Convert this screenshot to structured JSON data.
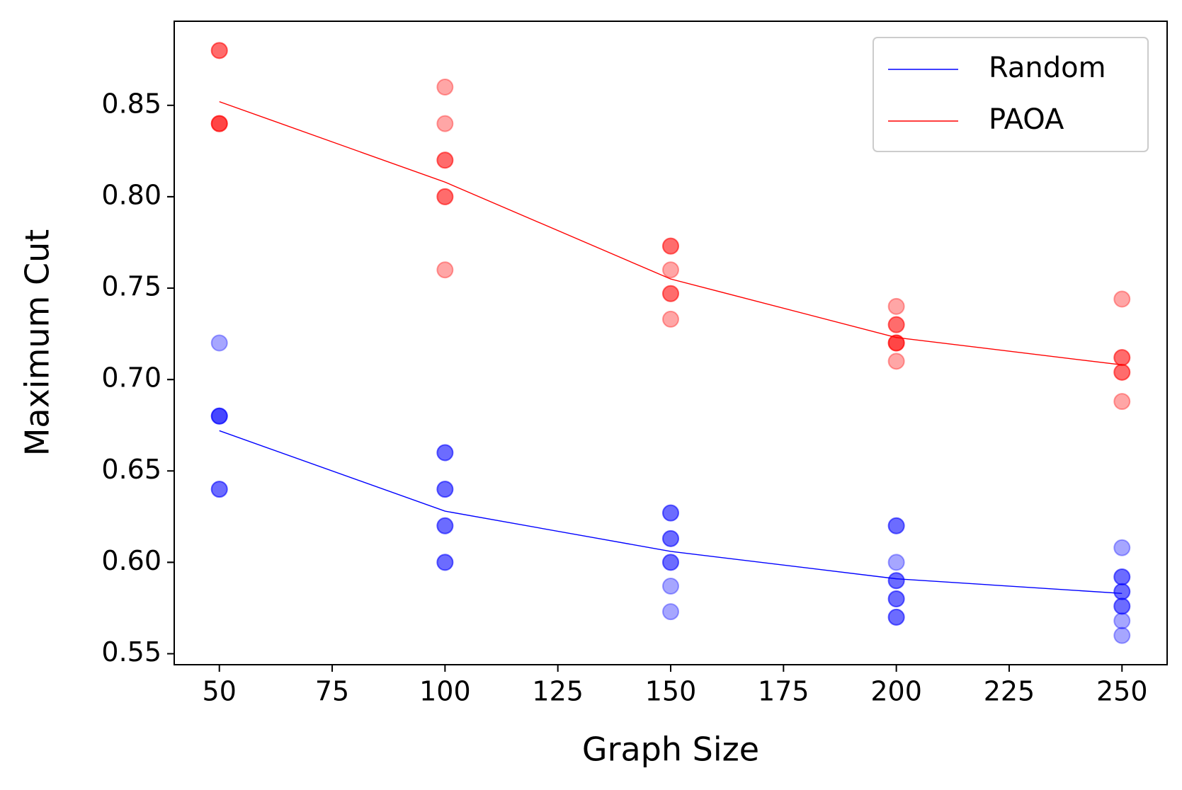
{
  "chart_data": {
    "type": "line",
    "xlabel": "Graph Size",
    "ylabel": "Maximum Cut",
    "xlim": [
      40,
      260
    ],
    "ylim": [
      0.544,
      0.896
    ],
    "xticks": [
      50,
      75,
      100,
      125,
      150,
      175,
      200,
      225,
      250
    ],
    "yticks": [
      0.55,
      0.6,
      {
        "value": 0.6,
        "label": "0.60"
      },
      0.65,
      0.7,
      {
        "value": 0.7,
        "label": "0.70"
      },
      0.75,
      0.8,
      {
        "value": 0.8,
        "label": "0.80"
      },
      0.85
    ],
    "legend": "upper right",
    "point_alpha": 0.35,
    "series": [
      {
        "name": "Random",
        "color": "#0000ff",
        "x": [
          50,
          100,
          150,
          200,
          250
        ],
        "values": [
          0.672,
          0.628,
          0.606,
          0.591,
          0.583
        ]
      },
      {
        "name": "PAOA",
        "color": "#ff0000",
        "x": [
          50,
          100,
          150,
          200,
          250
        ],
        "values": [
          0.852,
          0.808,
          0.755,
          0.723,
          0.708
        ]
      }
    ],
    "points": [
      {
        "color": "#0000ff",
        "x": [
          50,
          50,
          50,
          50,
          50,
          50,
          100,
          100,
          100,
          100,
          100,
          100,
          100,
          100,
          150,
          150,
          150,
          150,
          150,
          150,
          150,
          150,
          200,
          200,
          200,
          200,
          200,
          200,
          200,
          200,
          200,
          250,
          250,
          250,
          250,
          250,
          250,
          250,
          250,
          250
        ],
        "values": [
          0.72,
          0.68,
          0.68,
          0.68,
          0.64,
          0.64,
          0.66,
          0.66,
          0.64,
          0.64,
          0.62,
          0.62,
          0.6,
          0.6,
          0.627,
          0.627,
          0.613,
          0.613,
          0.6,
          0.6,
          0.587,
          0.573,
          0.62,
          0.62,
          0.6,
          0.59,
          0.59,
          0.58,
          0.58,
          0.57,
          0.57,
          0.608,
          0.592,
          0.592,
          0.584,
          0.584,
          0.576,
          0.576,
          0.568,
          0.56
        ]
      },
      {
        "color": "#ff0000",
        "x": [
          50,
          50,
          50,
          50,
          50,
          100,
          100,
          100,
          100,
          100,
          100,
          100,
          150,
          150,
          150,
          150,
          150,
          150,
          200,
          200,
          200,
          200,
          200,
          200,
          200,
          250,
          250,
          250,
          250,
          250,
          250
        ],
        "values": [
          0.88,
          0.88,
          0.84,
          0.84,
          0.84,
          0.86,
          0.84,
          0.82,
          0.82,
          0.8,
          0.8,
          0.76,
          0.773,
          0.773,
          0.76,
          0.747,
          0.747,
          0.733,
          0.74,
          0.73,
          0.73,
          0.72,
          0.72,
          0.72,
          0.71,
          0.744,
          0.712,
          0.712,
          0.704,
          0.704,
          0.688
        ]
      }
    ]
  }
}
